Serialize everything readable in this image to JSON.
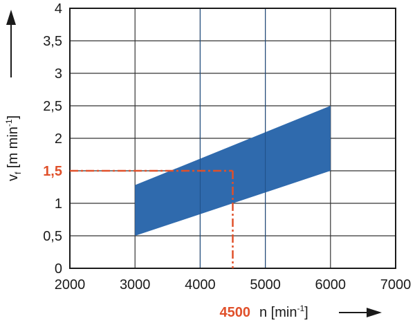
{
  "chart_data": {
    "type": "area",
    "title": "",
    "xlabel": "n [min",
    "xlabel_sup": "-1",
    "xlabel_close": "]",
    "ylabel": "v",
    "ylabel_sub": "f",
    "ylabel_unit": " [m min",
    "ylabel_sup": "-1",
    "ylabel_close": "]",
    "xlim": [
      2000,
      7000
    ],
    "ylim": [
      0,
      4
    ],
    "grid": true,
    "x_ticks": [
      "2000",
      "3000",
      "4000",
      "5000",
      "6000",
      "7000"
    ],
    "x_tick_values": [
      2000,
      3000,
      4000,
      5000,
      6000,
      7000
    ],
    "y_ticks": [
      "0",
      "0,5",
      "1",
      "1,5",
      "2",
      "2,5",
      "3",
      "3,5",
      "4"
    ],
    "y_tick_values": [
      0,
      0.5,
      1,
      1.5,
      2,
      2.5,
      3,
      3.5,
      4
    ],
    "band": {
      "x": [
        3000,
        6000
      ],
      "upper": [
        1.28,
        2.5
      ],
      "lower": [
        0.5,
        1.5
      ],
      "color": "#2f6aad"
    },
    "marker": {
      "x": 4500,
      "y": 1.5,
      "x_label": "4500",
      "y_label": "1,5",
      "color": "#e0502a"
    }
  }
}
